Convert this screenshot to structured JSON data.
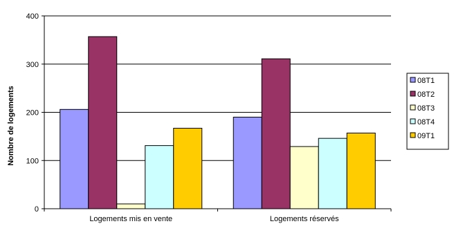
{
  "chart_data": {
    "type": "bar",
    "categories": [
      "Logements mis en vente",
      "Logements réservés"
    ],
    "series": [
      {
        "name": "08T1",
        "values": [
          206,
          190
        ],
        "color": "#9999ff"
      },
      {
        "name": "08T2",
        "values": [
          357,
          311
        ],
        "color": "#993366"
      },
      {
        "name": "08T3",
        "values": [
          10,
          129
        ],
        "color": "#ffffcc"
      },
      {
        "name": "08T4",
        "values": [
          131,
          146
        ],
        "color": "#ccffff"
      },
      {
        "name": "09T1",
        "values": [
          167,
          157
        ],
        "color": "#ffcc00"
      }
    ],
    "title": "",
    "xlabel": "",
    "ylabel": "Nombre de logements",
    "ylim": [
      0,
      400
    ],
    "yticks": [
      0,
      100,
      200,
      300,
      400
    ],
    "grid": true,
    "legend": "right"
  }
}
